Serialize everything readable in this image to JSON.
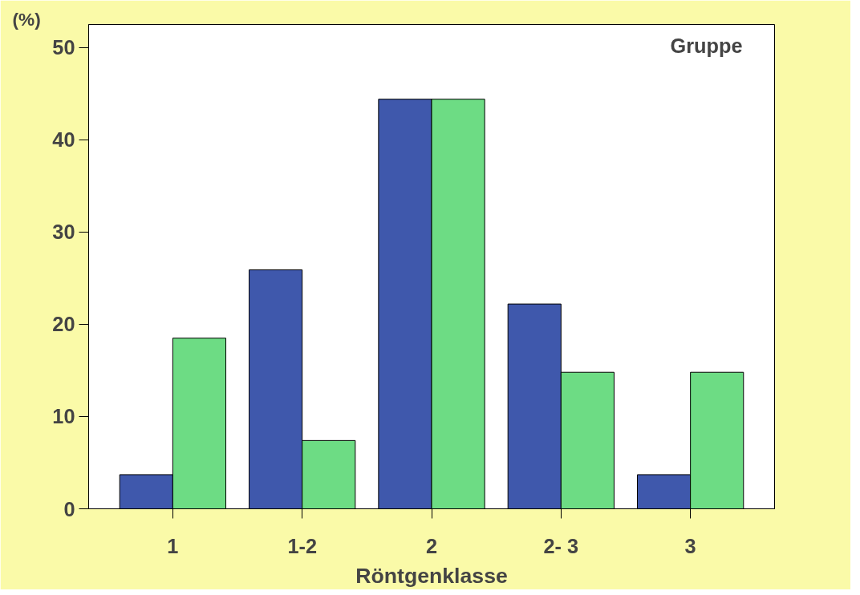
{
  "chart_data": {
    "type": "bar",
    "xlabel": "Röntgenklasse",
    "ylabel": "(%)",
    "legend_title": "Gruppe",
    "categories": [
      "1",
      "1-2",
      "2",
      "2- 3",
      "3"
    ],
    "series": [
      {
        "color": "#3f58ac",
        "values": [
          3.7,
          25.9,
          44.4,
          22.2,
          3.7
        ]
      },
      {
        "color": "#6ddc84",
        "values": [
          18.5,
          7.4,
          44.4,
          14.8,
          14.8
        ]
      }
    ],
    "ylim": [
      0,
      52.5
    ],
    "yticks": [
      0,
      10,
      20,
      30,
      40,
      50
    ]
  }
}
